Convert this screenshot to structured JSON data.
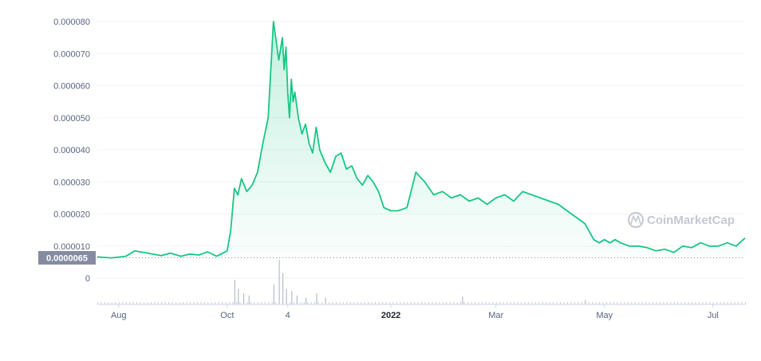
{
  "chart_data": {
    "type": "area",
    "ylim": [
      0,
      8e-05
    ],
    "y_ticks": [
      "0.000080",
      "0.000070",
      "0.000060",
      "0.000050",
      "0.000040",
      "0.000030",
      "0.000020",
      "0.000010"
    ],
    "volume_zero_label": "0",
    "x_ticks": [
      {
        "label": "Aug",
        "date": "2021-08-01",
        "bold": false
      },
      {
        "label": "Oct",
        "date": "2021-10-01",
        "bold": false
      },
      {
        "label": "4",
        "date": "2021-11-04",
        "bold": false
      },
      {
        "label": "2022",
        "date": "2022-01-01",
        "bold": true
      },
      {
        "label": "Mar",
        "date": "2022-03-01",
        "bold": false
      },
      {
        "label": "May",
        "date": "2022-05-01",
        "bold": false
      },
      {
        "label": "Jul",
        "date": "2022-07-01",
        "bold": false
      }
    ],
    "current_price_label": "0.0000065",
    "current_price": 6.5e-06,
    "line_color": "#16c784",
    "series": [
      {
        "x": [
          "2021-07-20",
          "2021-07-28",
          "2021-08-05",
          "2021-08-10",
          "2021-08-15",
          "2021-08-20",
          "2021-08-25",
          "2021-08-30",
          "2021-09-05",
          "2021-09-10",
          "2021-09-15",
          "2021-09-20",
          "2021-09-25",
          "2021-10-01",
          "2021-10-03",
          "2021-10-05",
          "2021-10-07",
          "2021-10-09",
          "2021-10-12",
          "2021-10-15",
          "2021-10-18",
          "2021-10-21",
          "2021-10-24",
          "2021-10-27",
          "2021-10-30",
          "2021-11-01",
          "2021-11-02",
          "2021-11-03",
          "2021-11-04",
          "2021-11-05",
          "2021-11-06",
          "2021-11-07",
          "2021-11-08",
          "2021-11-10",
          "2021-11-12",
          "2021-11-14",
          "2021-11-16",
          "2021-11-18",
          "2021-11-20",
          "2021-11-22",
          "2021-11-25",
          "2021-11-28",
          "2021-12-01",
          "2021-12-04",
          "2021-12-07",
          "2021-12-10",
          "2021-12-13",
          "2021-12-16",
          "2021-12-19",
          "2021-12-22",
          "2021-12-25",
          "2021-12-28",
          "2022-01-01",
          "2022-01-05",
          "2022-01-10",
          "2022-01-15",
          "2022-01-20",
          "2022-01-25",
          "2022-01-30",
          "2022-02-04",
          "2022-02-09",
          "2022-02-14",
          "2022-02-19",
          "2022-02-24",
          "2022-03-01",
          "2022-03-06",
          "2022-03-11",
          "2022-03-16",
          "2022-03-21",
          "2022-03-26",
          "2022-03-31",
          "2022-04-05",
          "2022-04-10",
          "2022-04-15",
          "2022-04-20",
          "2022-04-25",
          "2022-04-28",
          "2022-05-01",
          "2022-05-04",
          "2022-05-07",
          "2022-05-10",
          "2022-05-15",
          "2022-05-20",
          "2022-05-25",
          "2022-05-30",
          "2022-06-04",
          "2022-06-09",
          "2022-06-14",
          "2022-06-19",
          "2022-06-24",
          "2022-06-29",
          "2022-07-04",
          "2022-07-09",
          "2022-07-14",
          "2022-07-19"
        ],
        "y": [
          6.6e-06,
          6.3e-06,
          6.8e-06,
          8.5e-06,
          8e-06,
          7.5e-06,
          7e-06,
          7.8e-06,
          6.8e-06,
          7.5e-06,
          7.2e-06,
          8.2e-06,
          6.8e-06,
          8.5e-06,
          1.5e-05,
          2.8e-05,
          2.6e-05,
          3.1e-05,
          2.7e-05,
          2.9e-05,
          3.3e-05,
          4.2e-05,
          5e-05,
          8e-05,
          6.8e-05,
          7.5e-05,
          6.5e-05,
          7.2e-05,
          5.8e-05,
          5e-05,
          6.2e-05,
          5.5e-05,
          5.8e-05,
          5e-05,
          4.5e-05,
          4.8e-05,
          4.2e-05,
          3.9e-05,
          4.7e-05,
          4e-05,
          3.6e-05,
          3.3e-05,
          3.8e-05,
          3.9e-05,
          3.4e-05,
          3.5e-05,
          3.1e-05,
          2.9e-05,
          3.2e-05,
          3e-05,
          2.7e-05,
          2.2e-05,
          2.1e-05,
          2.1e-05,
          2.2e-05,
          3.3e-05,
          3e-05,
          2.6e-05,
          2.7e-05,
          2.5e-05,
          2.6e-05,
          2.4e-05,
          2.5e-05,
          2.3e-05,
          2.5e-05,
          2.6e-05,
          2.4e-05,
          2.7e-05,
          2.6e-05,
          2.5e-05,
          2.4e-05,
          2.3e-05,
          2.1e-05,
          1.9e-05,
          1.7e-05,
          1.2e-05,
          1.1e-05,
          1.2e-05,
          1.1e-05,
          1.2e-05,
          1.1e-05,
          1e-05,
          1e-05,
          9.5e-06,
          8.5e-06,
          9e-06,
          8e-06,
          1e-05,
          9.5e-06,
          1.1e-05,
          1e-05,
          1e-05,
          1.1e-05,
          1e-05,
          1.25e-05
        ]
      }
    ],
    "volume_peaks": [
      {
        "date": "2021-10-05",
        "value": 0.55
      },
      {
        "date": "2021-10-07",
        "value": 0.35
      },
      {
        "date": "2021-10-10",
        "value": 0.25
      },
      {
        "date": "2021-10-13",
        "value": 0.2
      },
      {
        "date": "2021-10-27",
        "value": 0.45
      },
      {
        "date": "2021-10-30",
        "value": 1.0
      },
      {
        "date": "2021-11-01",
        "value": 0.7
      },
      {
        "date": "2021-11-03",
        "value": 0.35
      },
      {
        "date": "2021-11-06",
        "value": 0.3
      },
      {
        "date": "2021-11-09",
        "value": 0.2
      },
      {
        "date": "2021-11-14",
        "value": 0.15
      },
      {
        "date": "2021-11-20",
        "value": 0.25
      },
      {
        "date": "2021-11-25",
        "value": 0.15
      },
      {
        "date": "2022-02-10",
        "value": 0.18
      },
      {
        "date": "2022-04-20",
        "value": 0.1
      }
    ]
  },
  "watermark": {
    "text": "CoinMarketCap"
  }
}
